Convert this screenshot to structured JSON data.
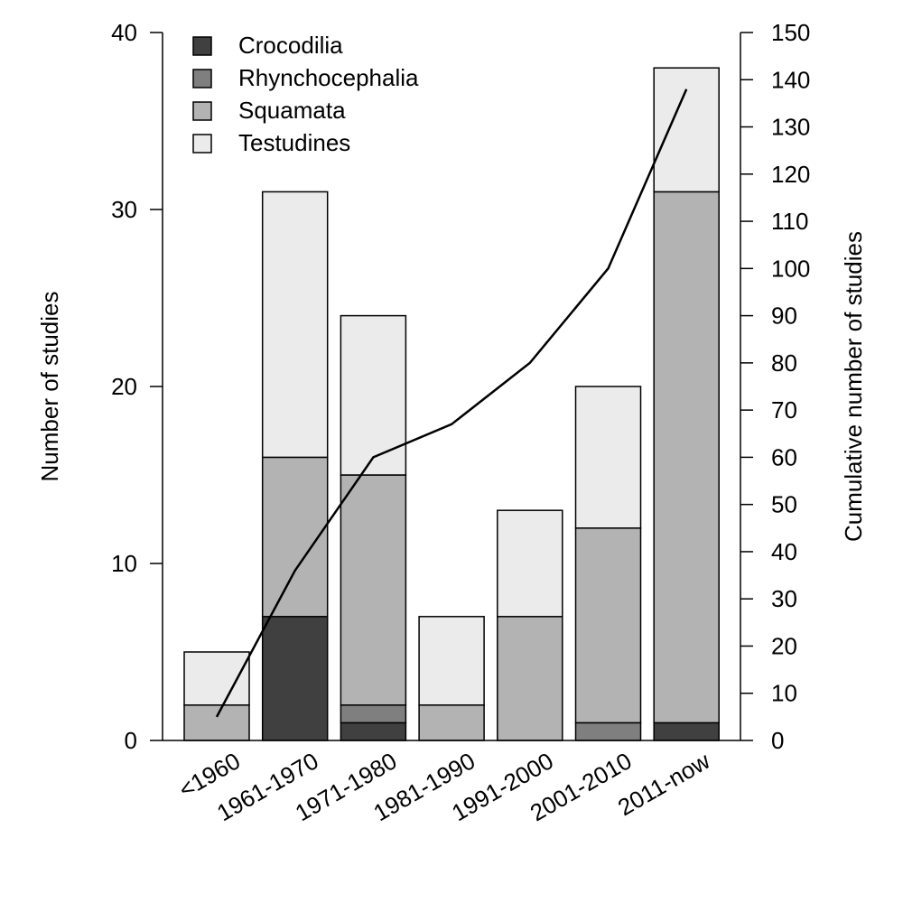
{
  "chart_data": {
    "type": "bar",
    "stacked": true,
    "categories": [
      "<1960",
      "1961-1970",
      "1971-1980",
      "1981-1990",
      "1991-2000",
      "2001-2010",
      "2011-now"
    ],
    "series": [
      {
        "name": "Crocodilia",
        "color": "#404040",
        "values": [
          0,
          7,
          1,
          0,
          0,
          0,
          1
        ]
      },
      {
        "name": "Rhynchocephalia",
        "color": "#7f7f7f",
        "values": [
          0,
          0,
          1,
          0,
          0,
          1,
          0
        ]
      },
      {
        "name": "Squamata",
        "color": "#b3b3b3",
        "values": [
          2,
          9,
          13,
          2,
          7,
          11,
          30
        ]
      },
      {
        "name": "Testudines",
        "color": "#ebebeb",
        "values": [
          3,
          15,
          9,
          5,
          6,
          8,
          7
        ]
      }
    ],
    "cumulative": {
      "values": [
        5,
        36,
        60,
        67,
        80,
        100,
        138
      ],
      "color": "#000000"
    },
    "ylabel": "Number of studies",
    "y2label": "Cumulative number of studies",
    "ylim": [
      0,
      40
    ],
    "y2lim": [
      0,
      150
    ],
    "yticks": [
      0,
      10,
      20,
      30,
      40
    ],
    "y2ticks": [
      0,
      10,
      20,
      30,
      40,
      50,
      60,
      70,
      80,
      90,
      100,
      110,
      120,
      130,
      140,
      150
    ],
    "legend_position": "top-left",
    "grid": false
  }
}
